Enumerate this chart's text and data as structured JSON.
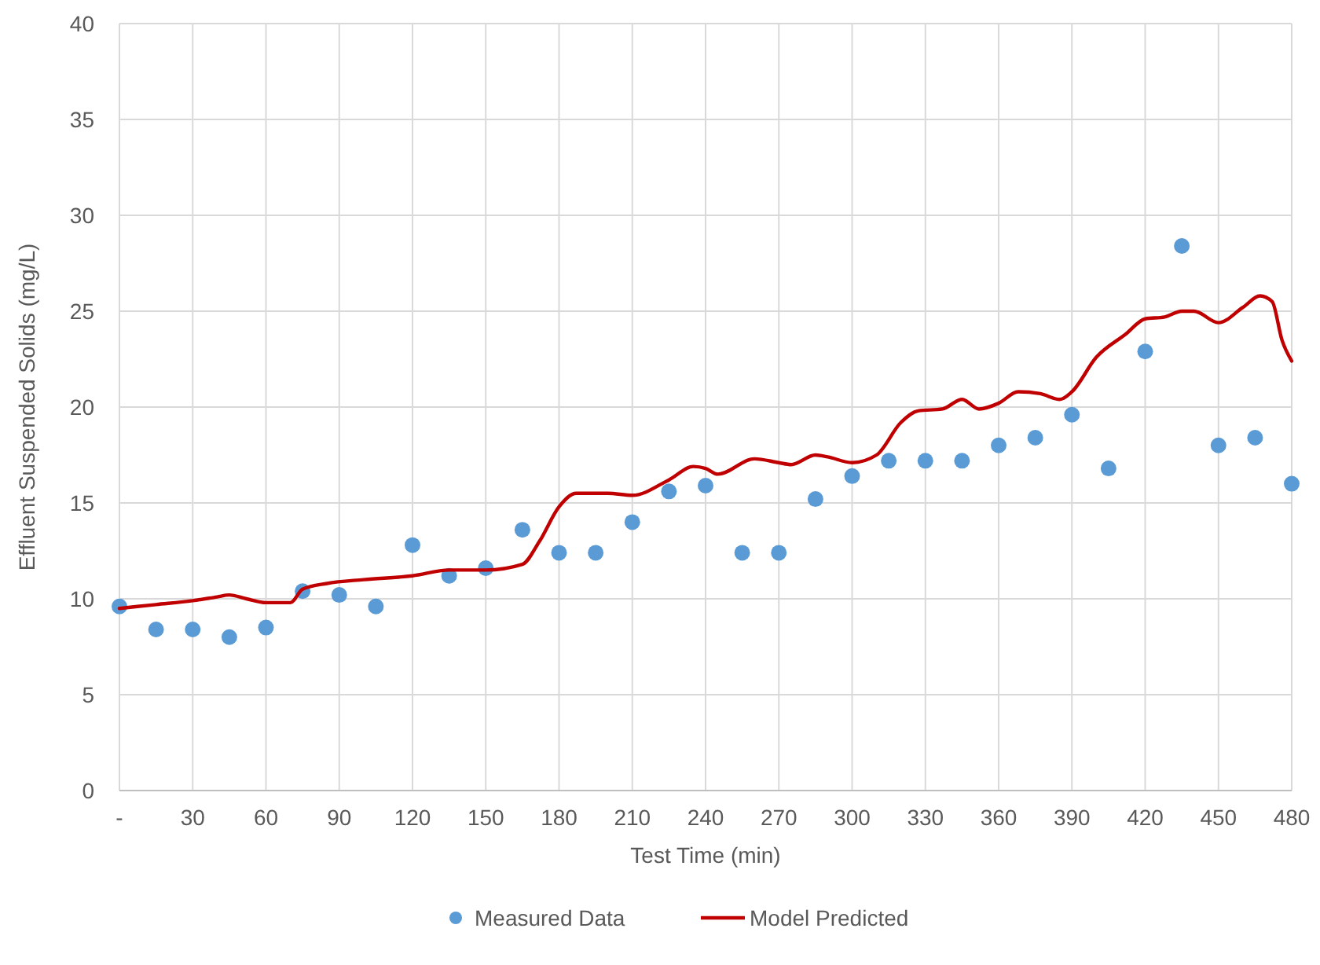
{
  "chart_data": {
    "type": "scatter",
    "xlabel": "Test Time (min)",
    "ylabel": "Effluent Suspended Solids (mg/L)",
    "xlim": [
      0,
      480
    ],
    "ylim": [
      0,
      40
    ],
    "xticks": [
      {
        "value": 0,
        "label": "-"
      },
      30,
      60,
      90,
      120,
      150,
      180,
      210,
      240,
      270,
      300,
      330,
      360,
      390,
      420,
      450,
      480
    ],
    "yticks": [
      0,
      5,
      10,
      15,
      20,
      25,
      30,
      35,
      40
    ],
    "grid": true,
    "legend": "bottom",
    "series": [
      {
        "name": "Measured Data",
        "marker": "circle",
        "color": "#5b9bd5",
        "x": [
          0,
          15,
          30,
          45,
          60,
          75,
          90,
          105,
          120,
          135,
          150,
          165,
          180,
          195,
          210,
          225,
          240,
          255,
          270,
          285,
          300,
          315,
          330,
          345,
          360,
          375,
          390,
          405,
          420,
          435,
          450,
          465,
          480
        ],
        "values": [
          9.6,
          8.4,
          8.4,
          8.0,
          8.5,
          10.4,
          10.2,
          9.6,
          12.8,
          11.2,
          11.6,
          13.6,
          12.4,
          12.4,
          14.0,
          15.6,
          15.9,
          12.4,
          12.4,
          15.2,
          16.4,
          17.2,
          17.2,
          17.2,
          18.0,
          18.4,
          19.6,
          16.8,
          22.9,
          28.4,
          18.0,
          18.4,
          16.0
        ]
      },
      {
        "name": "Model Predicted",
        "type": "line",
        "marker": "none",
        "line_style": "solid",
        "color": "#c00000",
        "x": [
          0,
          15,
          30,
          40,
          45,
          52,
          60,
          70,
          75,
          85,
          100,
          120,
          135,
          150,
          165,
          172,
          180,
          187,
          200,
          210,
          225,
          235,
          240,
          245,
          260,
          270,
          275,
          285,
          290,
          300,
          310,
          320,
          327,
          337,
          345,
          352,
          360,
          368,
          377,
          385,
          390,
          400,
          412,
          420,
          428,
          435,
          440,
          450,
          460,
          467,
          472,
          476,
          480
        ],
        "values": [
          9.5,
          9.7,
          9.9,
          10.1,
          10.2,
          10.0,
          9.8,
          9.8,
          10.5,
          10.8,
          11.0,
          11.2,
          11.5,
          11.5,
          11.8,
          13.0,
          14.8,
          15.5,
          15.5,
          15.4,
          16.2,
          16.9,
          16.8,
          16.5,
          17.3,
          17.1,
          17.0,
          17.5,
          17.4,
          17.1,
          17.5,
          19.2,
          19.8,
          19.9,
          20.4,
          19.9,
          20.2,
          20.8,
          20.7,
          20.4,
          20.8,
          22.6,
          23.8,
          24.6,
          24.7,
          25.0,
          25.0,
          24.4,
          25.2,
          25.8,
          25.5,
          23.5,
          22.4
        ]
      }
    ]
  }
}
